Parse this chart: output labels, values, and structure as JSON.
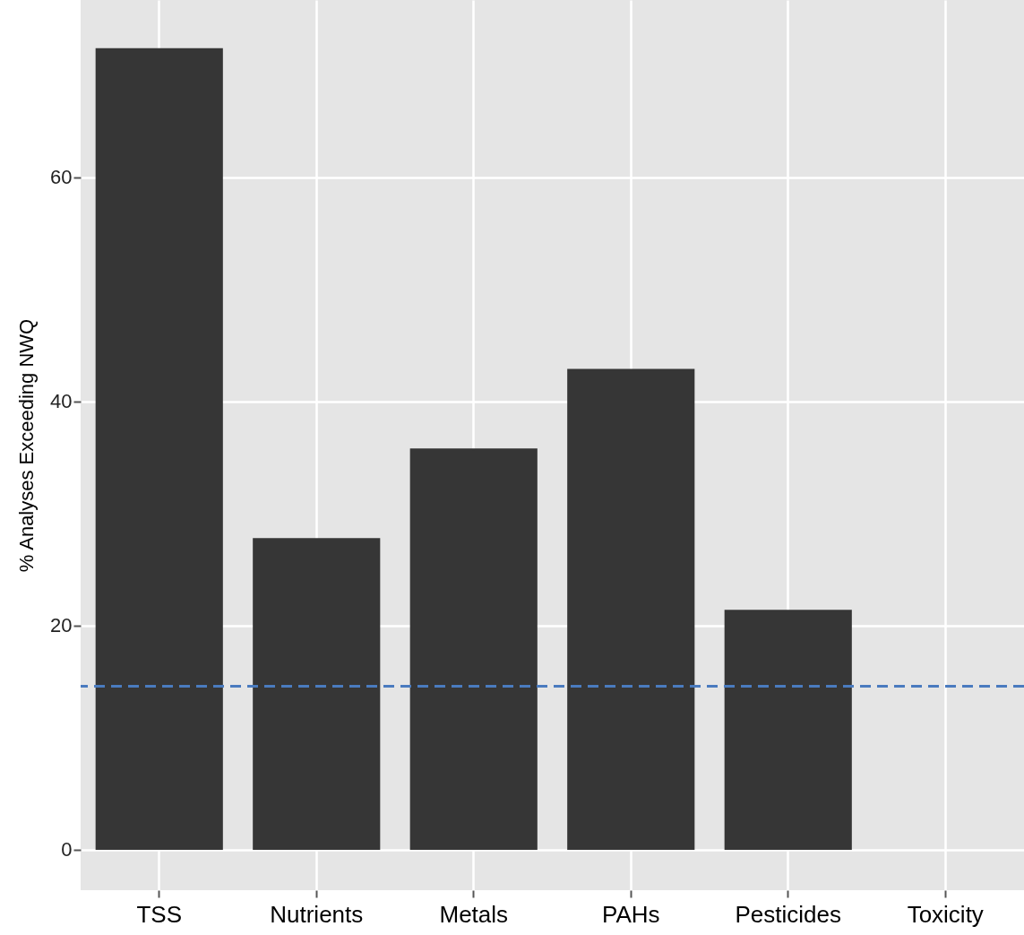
{
  "chart_data": {
    "type": "bar",
    "ylabel": "% Analyses Exceeding NWQ",
    "categories": [
      "TSS",
      "Nutrients",
      "Metals",
      "PAHs",
      "Pesticides",
      "Toxicity"
    ],
    "values": [
      71.5,
      27.8,
      35.8,
      42.9,
      21.4,
      0
    ],
    "color": "#363636",
    "ylim": [
      -3.6,
      75.8
    ],
    "yticks": [
      0,
      20,
      40,
      60
    ],
    "grid": true,
    "ref_lines": [
      {
        "axis": "y",
        "value": 14.6,
        "color": "#4a7bbf",
        "line_style": "dashed"
      }
    ]
  }
}
